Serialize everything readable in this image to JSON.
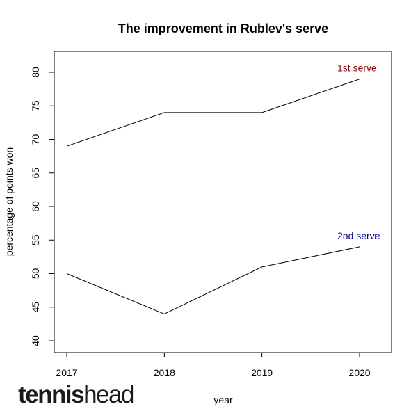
{
  "chart_data": {
    "type": "line",
    "title": "The improvement in Rublev's serve",
    "xlabel": "year",
    "ylabel": "percentage of points won",
    "x": [
      2017,
      2018,
      2019,
      2020
    ],
    "x_tick_labels": [
      "2017",
      "2018",
      "2019",
      "2020"
    ],
    "ylim": [
      40,
      80
    ],
    "y_ticks": [
      40,
      45,
      50,
      55,
      60,
      65,
      70,
      75,
      80
    ],
    "y_tick_labels": [
      "40",
      "45",
      "50",
      "55",
      "60",
      "65",
      "70",
      "75",
      "80"
    ],
    "grid": false,
    "series": [
      {
        "name": "1st serve",
        "values": [
          69,
          74,
          74,
          79
        ],
        "color": "#8b0000",
        "line_color": "#000000"
      },
      {
        "name": "2nd serve",
        "values": [
          50,
          44,
          51,
          54
        ],
        "color": "#00008b",
        "line_color": "#000000"
      }
    ]
  },
  "logo": {
    "bold": "tennis",
    "regular": "head"
  }
}
